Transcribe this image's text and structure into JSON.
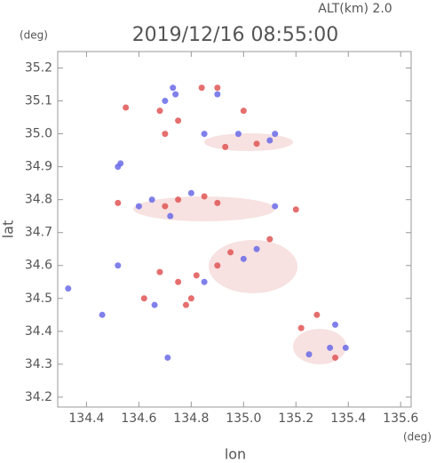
{
  "chart_data": {
    "type": "scatter",
    "title": "2019/12/16 08:55:00",
    "subtitle": "ALT(km) 2.0",
    "xlabel": "lon",
    "ylabel": "lat",
    "xunit": "(deg)",
    "yunit": "(deg)",
    "xlim": [
      134.29,
      135.64
    ],
    "ylim": [
      34.17,
      35.25
    ],
    "xticks": [
      134.4,
      134.6,
      134.8,
      {
        "value": 135,
        "label": "135.0"
      },
      135.2,
      135.4,
      135.6
    ],
    "yticks": [
      34.2,
      34.3,
      34.4,
      34.5,
      34.6,
      34.7,
      34.8,
      34.9,
      {
        "value": 35,
        "label": "35.0"
      },
      35.1,
      35.2
    ],
    "x": [
      134.84,
      134.9,
      134.9,
      134.74,
      134.7,
      134.73,
      134.55,
      134.68,
      134.75,
      134.7,
      135.0,
      134.85,
      134.98,
      135.05,
      135.1,
      134.93,
      135.12,
      134.52,
      134.53,
      134.52,
      134.6,
      134.7,
      134.75,
      134.8,
      134.85,
      134.9,
      134.65,
      134.72,
      135.2,
      135.12,
      134.95,
      135.0,
      134.9,
      134.82,
      135.05,
      135.1,
      134.85,
      134.75,
      134.8,
      134.78,
      134.62,
      134.66,
      134.52,
      134.68,
      135.28,
      135.35,
      135.33,
      135.39,
      135.35,
      135.25,
      135.22,
      134.71,
      134.33,
      134.46
    ],
    "y": [
      35.14,
      35.14,
      35.12,
      35.12,
      35.1,
      35.14,
      35.08,
      35.07,
      35.04,
      35.0,
      35.07,
      35.0,
      35.0,
      34.97,
      34.98,
      34.96,
      35.0,
      34.9,
      34.91,
      34.79,
      34.78,
      34.78,
      34.8,
      34.82,
      34.81,
      34.79,
      34.8,
      34.75,
      34.77,
      34.78,
      34.64,
      34.62,
      34.6,
      34.57,
      34.65,
      34.68,
      34.55,
      34.55,
      34.5,
      34.48,
      34.5,
      34.48,
      34.6,
      34.58,
      34.45,
      34.42,
      34.35,
      34.35,
      34.32,
      34.33,
      34.41,
      34.32,
      34.53,
      34.45
    ],
    "colors": [
      "#e05555",
      "#e05555",
      "#6a6ae8",
      "#6a6ae8",
      "#6a6ae8",
      "#6a6ae8",
      "#e05555",
      "#e05555",
      "#e05555",
      "#e05555",
      "#e05555",
      "#6a6ae8",
      "#6a6ae8",
      "#e05555",
      "#6a6ae8",
      "#e05555",
      "#6a6ae8",
      "#6a6ae8",
      "#6a6ae8",
      "#e05555",
      "#6a6ae8",
      "#e05555",
      "#e05555",
      "#6a6ae8",
      "#e05555",
      "#e05555",
      "#6a6ae8",
      "#6a6ae8",
      "#e05555",
      "#6a6ae8",
      "#e05555",
      "#6a6ae8",
      "#e05555",
      "#e05555",
      "#6a6ae8",
      "#e05555",
      "#6a6ae8",
      "#e05555",
      "#e05555",
      "#e05555",
      "#e05555",
      "#6a6ae8",
      "#6a6ae8",
      "#e05555",
      "#e05555",
      "#6a6ae8",
      "#6a6ae8",
      "#6a6ae8",
      "#e05555",
      "#6a6ae8",
      "#e05555",
      "#6a6ae8",
      "#6a6ae8",
      "#6a6ae8"
    ]
  }
}
